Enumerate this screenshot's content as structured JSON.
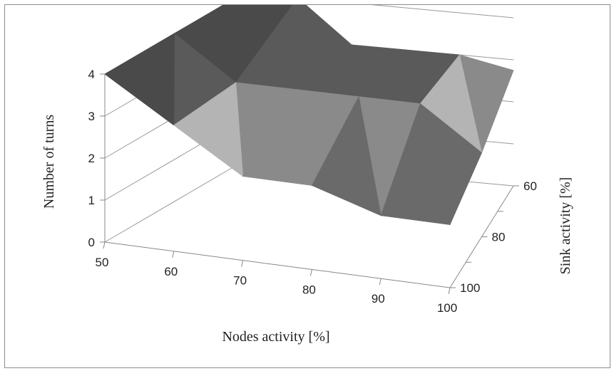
{
  "chart_data": {
    "type": "surface",
    "title": "",
    "x_axis": {
      "label": "Nodes activity [%]",
      "ticks": [
        "50",
        "60",
        "70",
        "80",
        "90",
        "100"
      ]
    },
    "y_axis": {
      "label": "Sink activity [%]",
      "ticks": [
        "100",
        "80",
        "60"
      ]
    },
    "z_axis": {
      "label": "Number of turns",
      "ticks": [
        "0",
        "1",
        "2",
        "3",
        "4"
      ],
      "range": [
        0,
        4
      ]
    },
    "grid": true,
    "series": [
      {
        "name": "60",
        "sink": 60,
        "values": [
          4,
          4,
          3,
          3,
          3,
          2.75
        ]
      },
      {
        "name": "80",
        "sink": 80,
        "values": [
          4,
          3,
          3,
          3,
          3,
          2
        ]
      },
      {
        "name": "100",
        "sink": 100,
        "values": [
          4,
          3,
          2,
          2,
          1.5,
          1.5
        ]
      }
    ],
    "shading": {
      "band_2_3": "#b4b4b4",
      "band_2_3_dark": "#8a8a8a",
      "band_3_4": "#5a5a5a",
      "band_3_4_dark": "#4a4a4a",
      "band_1_2": "#7c7c7c",
      "band_1_2_dark": "#6a6a6a",
      "top_plateau": "#6e6e6e",
      "axis_color": "#888888",
      "grid_color": "#999999"
    }
  }
}
